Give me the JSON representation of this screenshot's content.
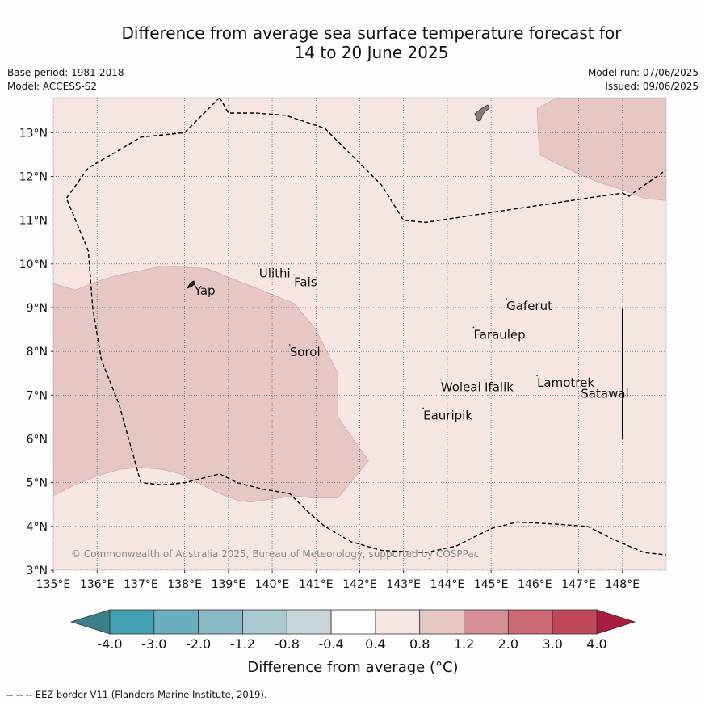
{
  "title": {
    "line1": "Difference from average sea surface temperature forecast for",
    "line2": "14 to 20 June 2025"
  },
  "meta": {
    "base_period": "Base period: 1981-2018",
    "model": "Model: ACCESS-S2",
    "model_run": "Model run: 07/06/2025",
    "issued": "Issued: 09/06/2025"
  },
  "map": {
    "lon_range": [
      135,
      149
    ],
    "lat_range": [
      3,
      13.8
    ],
    "lon_ticks": [
      "135°E",
      "136°E",
      "137°E",
      "138°E",
      "139°E",
      "140°E",
      "141°E",
      "142°E",
      "143°E",
      "144°E",
      "145°E",
      "146°E",
      "147°E",
      "148°E"
    ],
    "lat_ticks": [
      "3°N",
      "4°N",
      "5°N",
      "6°N",
      "7°N",
      "8°N",
      "9°N",
      "10°N",
      "11°N",
      "12°N",
      "13°N"
    ],
    "background_category": "0.4 to 0.8",
    "background_color": "#f5e6e4",
    "anomaly_color": "#e6c7c3",
    "anomaly_category": "0.8 to 1.2",
    "anomaly_regions": [
      {
        "name": "west-warm-region",
        "points": [
          [
            135,
            9.55
          ],
          [
            135.5,
            9.4
          ],
          [
            136,
            9.6
          ],
          [
            136.5,
            9.75
          ],
          [
            137,
            9.85
          ],
          [
            137.5,
            9.95
          ],
          [
            138.5,
            9.9
          ],
          [
            139,
            9.7
          ],
          [
            139.5,
            9.5
          ],
          [
            140,
            9.3
          ],
          [
            140.5,
            9.1
          ],
          [
            141,
            8.5
          ],
          [
            141.5,
            7.5
          ],
          [
            141.5,
            6.5
          ],
          [
            142.2,
            5.5
          ],
          [
            141.5,
            4.65
          ],
          [
            140.9,
            4.65
          ],
          [
            140.5,
            4.7
          ],
          [
            140.2,
            4.65
          ],
          [
            139.8,
            4.6
          ],
          [
            139.5,
            4.55
          ],
          [
            139.2,
            4.6
          ],
          [
            138.8,
            4.75
          ],
          [
            138.3,
            5.0
          ],
          [
            137.9,
            5.2
          ],
          [
            137.5,
            5.3
          ],
          [
            137,
            5.35
          ],
          [
            136.5,
            5.3
          ],
          [
            136,
            5.15
          ],
          [
            135.5,
            4.95
          ],
          [
            135,
            4.7
          ]
        ]
      },
      {
        "name": "northeast-warm-region",
        "points": [
          [
            146.05,
            13.55
          ],
          [
            146.5,
            13.8
          ],
          [
            149,
            13.8
          ],
          [
            149,
            11.45
          ],
          [
            148.5,
            11.5
          ],
          [
            148,
            11.7
          ],
          [
            147.5,
            11.85
          ],
          [
            147,
            12.05
          ],
          [
            146.5,
            12.3
          ],
          [
            146.1,
            12.5
          ]
        ]
      }
    ],
    "eez_border": [
      [
        [
          138.8,
          13.8
        ],
        [
          139,
          13.45
        ],
        [
          139.6,
          13.45
        ],
        [
          140.3,
          13.4
        ],
        [
          141.2,
          13.1
        ],
        [
          141.8,
          12.5
        ],
        [
          142.5,
          11.8
        ],
        [
          143,
          11.0
        ],
        [
          143.5,
          10.95
        ],
        [
          144.5,
          11.1
        ],
        [
          145.5,
          11.25
        ],
        [
          146.5,
          11.4
        ],
        [
          147.5,
          11.55
        ],
        [
          148,
          11.62
        ],
        [
          148.15,
          11.55
        ],
        [
          148.5,
          11.8
        ],
        [
          149,
          12.15
        ]
      ],
      [
        [
          138.8,
          13.8
        ],
        [
          138,
          13.0
        ],
        [
          137,
          12.9
        ],
        [
          136.5,
          12.6
        ],
        [
          135.8,
          12.2
        ],
        [
          135.3,
          11.5
        ],
        [
          135.8,
          10.3
        ],
        [
          135.9,
          9.0
        ],
        [
          136.1,
          7.8
        ],
        [
          136.5,
          6.8
        ],
        [
          137,
          5.0
        ],
        [
          137.5,
          4.95
        ],
        [
          138,
          5.0
        ],
        [
          138.4,
          5.1
        ],
        [
          138.8,
          5.2
        ],
        [
          139.2,
          5.0
        ],
        [
          139.8,
          4.85
        ],
        [
          140.4,
          4.75
        ],
        [
          140.8,
          4.35
        ],
        [
          141.2,
          4.0
        ],
        [
          141.8,
          3.65
        ],
        [
          142.5,
          3.45
        ],
        [
          143.5,
          3.4
        ],
        [
          144.2,
          3.55
        ],
        [
          145,
          3.95
        ],
        [
          145.6,
          4.1
        ],
        [
          146.5,
          4.05
        ],
        [
          147.2,
          4.0
        ],
        [
          147.8,
          3.7
        ],
        [
          148.5,
          3.4
        ],
        [
          149,
          3.35
        ]
      ]
    ],
    "satawal_line": {
      "lon": 148,
      "lat_from": 6,
      "lat_to": 9
    },
    "islands": [
      {
        "name": "Yap",
        "lon": 138.15,
        "lat": 9.55,
        "label_dx": 4,
        "label_dy": 5
      },
      {
        "name": "Ulithi",
        "lon": 139.7,
        "lat": 9.95,
        "label_dx": 0,
        "label_dy": 5
      },
      {
        "name": "Fais",
        "lon": 140.5,
        "lat": 9.75,
        "label_dx": 0,
        "label_dy": 5
      },
      {
        "name": "Gaferut",
        "lon": 145.35,
        "lat": 9.2,
        "label_dx": 0,
        "label_dy": 5
      },
      {
        "name": "Faraulep",
        "lon": 144.6,
        "lat": 8.55,
        "label_dx": 0,
        "label_dy": 5
      },
      {
        "name": "Sorol",
        "lon": 140.4,
        "lat": 8.15,
        "label_dx": 0,
        "label_dy": 5
      },
      {
        "name": "Lamotrek",
        "lon": 146.05,
        "lat": 7.45,
        "label_dx": 0,
        "label_dy": 5
      },
      {
        "name": "Satawal",
        "lon": 147.05,
        "lat": 7.2,
        "label_dx": 0,
        "label_dy": 5
      },
      {
        "name": "Woleai",
        "lon": 143.85,
        "lat": 7.35,
        "label_dx": 0,
        "label_dy": 5
      },
      {
        "name": "Ifalik",
        "lon": 144.85,
        "lat": 7.35,
        "label_dx": 0,
        "label_dy": 5
      },
      {
        "name": "Eauripik",
        "lon": 143.45,
        "lat": 6.7,
        "label_dx": 0,
        "label_dy": 5
      }
    ],
    "copyright": "© Commonwealth of Australia 2025, Bureau of Meteorology, supported by COSPPac"
  },
  "colorbar": {
    "labels": [
      "-4.0",
      "-3.0",
      "-2.0",
      "-1.2",
      "-0.8",
      "-0.4",
      "0.4",
      "0.8",
      "1.2",
      "2.0",
      "3.0",
      "4.0"
    ],
    "colors": [
      "#42a0b2",
      "#6aafbd",
      "#89b9c5",
      "#a9c9cf",
      "#c8d6da",
      "#ffffff",
      "#f5e6e4",
      "#e6c7c3",
      "#d79097",
      "#cb6a75",
      "#c04757"
    ],
    "under_color": "#3b7f89",
    "over_color": "#a81c3f",
    "label": "Difference from average (°C)"
  },
  "footer": "--  --  -- EEZ border V11 (Flanders Marine Institute, 2019)."
}
